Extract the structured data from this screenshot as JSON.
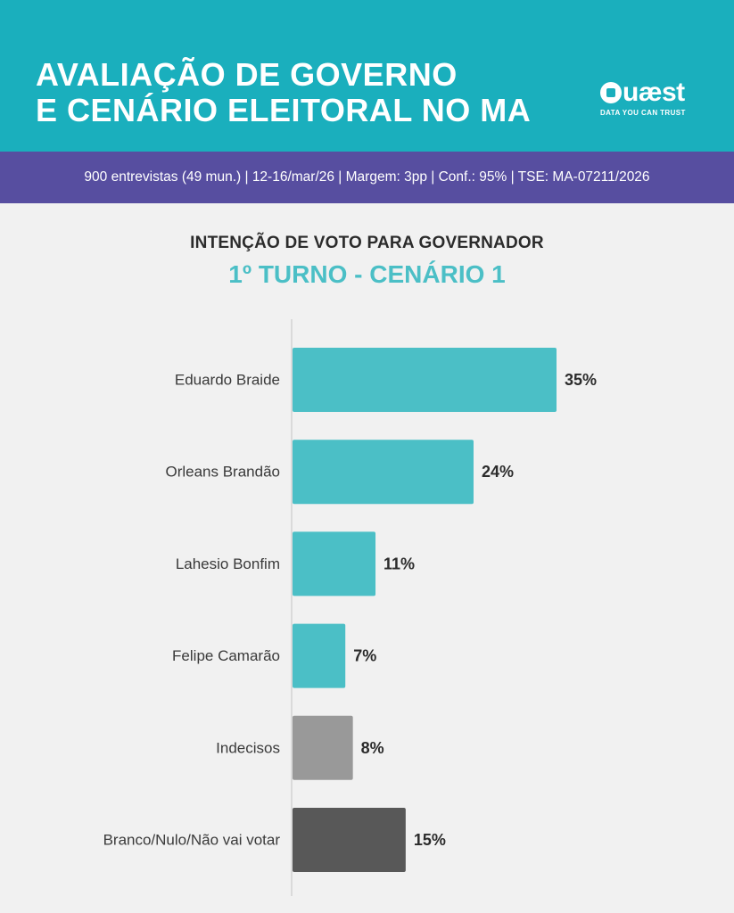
{
  "header": {
    "title_line1": "AVALIAÇÃO DE GOVERNO",
    "title_line2": "E CENÁRIO ELEITORAL NO MA",
    "logo_text": "uæst",
    "logo_tagline": "DATA YOU CAN TRUST"
  },
  "infobar": {
    "text": "900 entrevistas (49 mun.) | 12-16/mar/26 | Margem: 3pp | Conf.: 95% | TSE: MA-07211/2026"
  },
  "colors": {
    "header_bg": "#1aafbd",
    "infobar_bg": "#574ea0",
    "candidate_bar": "#4bbfc6",
    "undecided_bar": "#999999",
    "blank_bar": "#585858"
  },
  "chart_data": {
    "type": "bar",
    "orientation": "horizontal",
    "title": "INTENÇÃO DE VOTO PARA GOVERNADOR",
    "subtitle": "1º TURNO - CENÁRIO 1",
    "categories": [
      "Eduardo Braide",
      "Orleans Brandão",
      "Lahesio Bonfim",
      "Felipe Camarão",
      "Indecisos",
      "Branco/Nulo/Não vai votar"
    ],
    "values": [
      35,
      24,
      11,
      7,
      8,
      15
    ],
    "value_labels": [
      "35%",
      "24%",
      "11%",
      "7%",
      "8%",
      "15%"
    ],
    "bar_colors": [
      "#4bbfc6",
      "#4bbfc6",
      "#4bbfc6",
      "#4bbfc6",
      "#999999",
      "#585858"
    ],
    "xlim": [
      0,
      35
    ],
    "xlabel": "",
    "ylabel": "",
    "grid": false
  }
}
